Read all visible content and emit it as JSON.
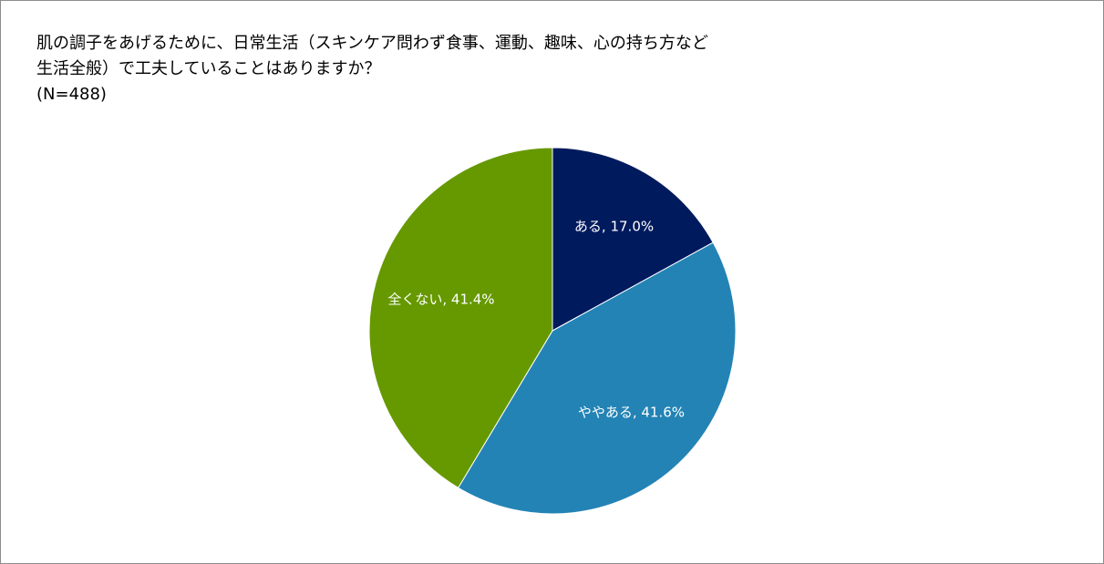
{
  "chart_data": {
    "type": "pie",
    "title_lines": [
      "肌の調子をあげるために、日常生活（スキンケア問わず食事、運動、趣味、心の持ち方など",
      "生活全般）で工夫していることはありますか？",
      "(N=488)"
    ],
    "slices": [
      {
        "label": "ある, 17.0%",
        "value": 17.0,
        "color": "#001a5e"
      },
      {
        "label": "ややある, 41.6%",
        "value": 41.6,
        "color": "#2383b5"
      },
      {
        "label": "全くない, 41.4%",
        "value": 41.4,
        "color": "#669900"
      }
    ]
  }
}
